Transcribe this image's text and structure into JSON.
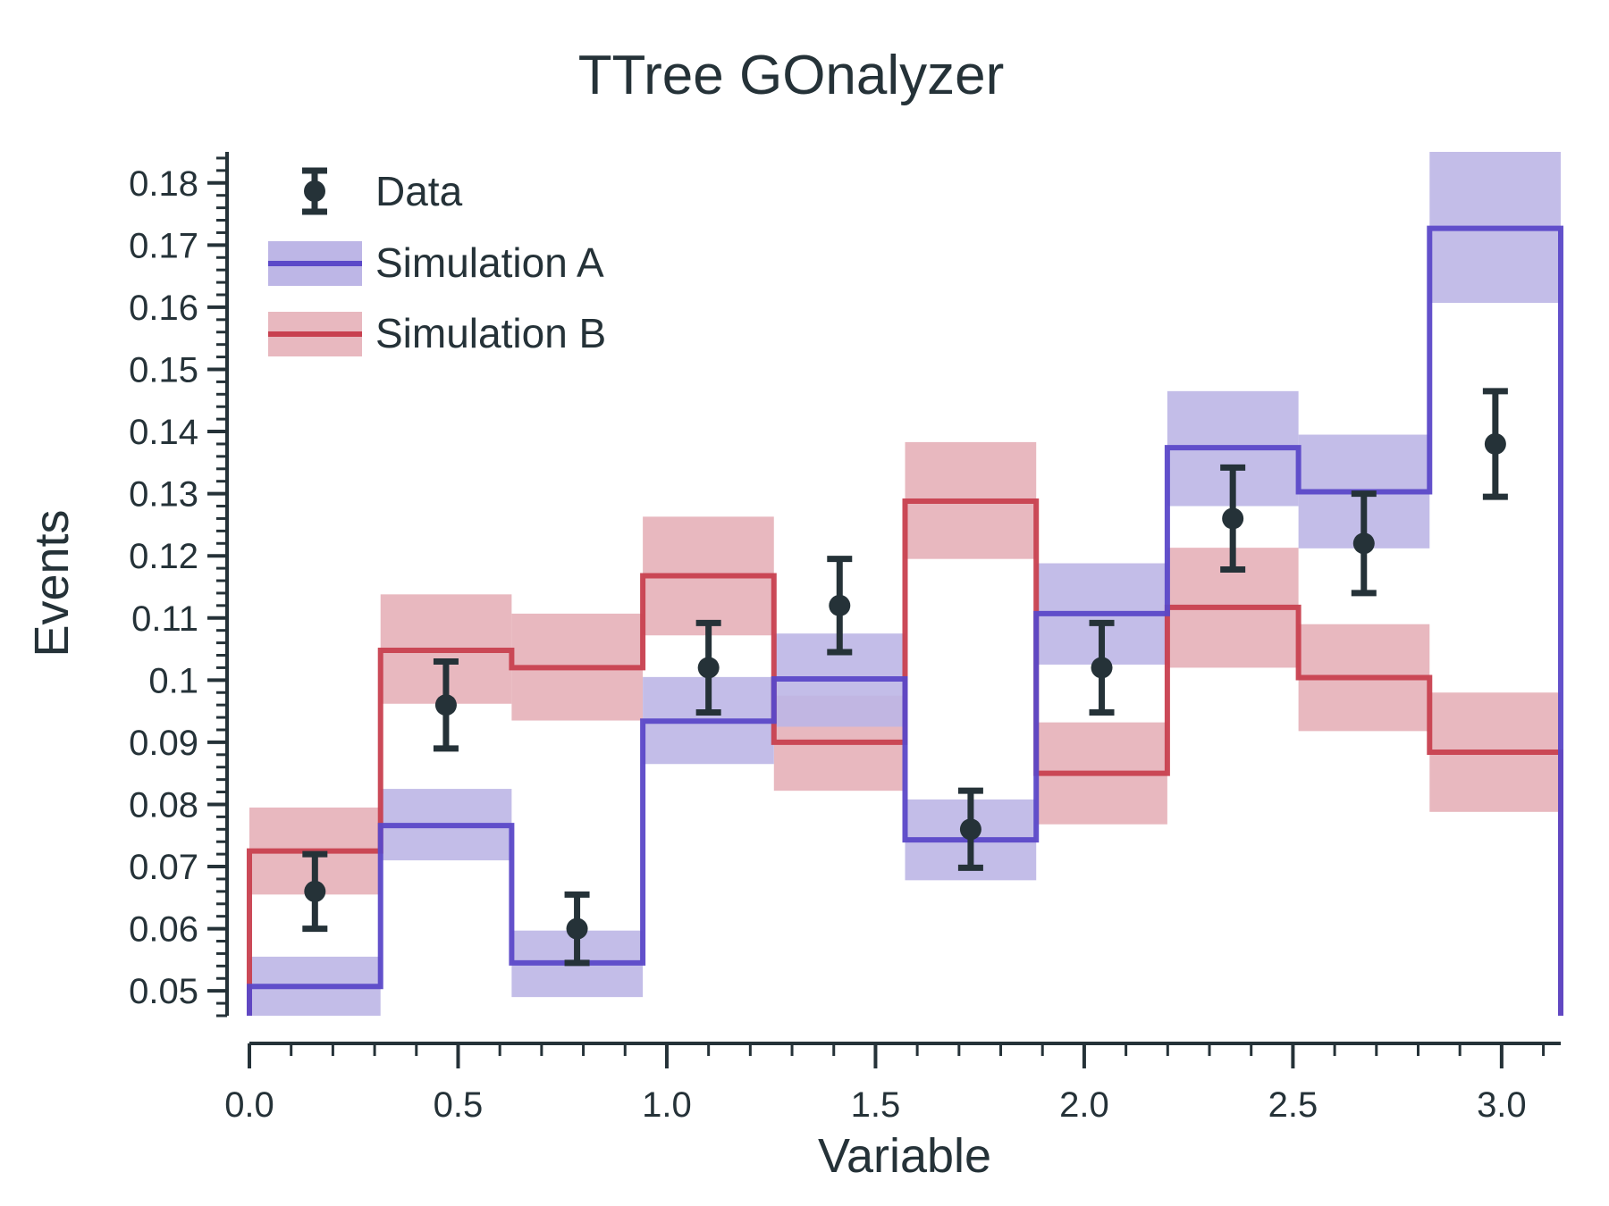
{
  "chart_data": {
    "type": "histogram",
    "title": "TTree GOnalyzer",
    "xlabel": "Variable",
    "ylabel": "Events",
    "xlim": [
      0,
      3.1416
    ],
    "ylim": [
      0.046,
      0.185
    ],
    "bin_edges": [
      0,
      0.3142,
      0.6283,
      0.9425,
      1.2566,
      1.5708,
      1.885,
      2.1991,
      2.5133,
      2.8274,
      3.1416
    ],
    "xticks": [
      "0.0",
      "0.5",
      "1.0",
      "1.5",
      "2.0",
      "2.5",
      "3.0"
    ],
    "xtick_values": [
      0,
      0.5,
      1.0,
      1.5,
      2.0,
      2.5,
      3.0
    ],
    "yticks": [
      "0.05",
      "0.06",
      "0.07",
      "0.08",
      "0.09",
      "0.1",
      "0.11",
      "0.12",
      "0.13",
      "0.14",
      "0.15",
      "0.16",
      "0.17",
      "0.18"
    ],
    "ytick_values": [
      0.05,
      0.06,
      0.07,
      0.08,
      0.09,
      0.1,
      0.11,
      0.12,
      0.13,
      0.14,
      0.15,
      0.16,
      0.17,
      0.18
    ],
    "legend_position": "top-left",
    "data": {
      "name": "Data",
      "color": "#253238",
      "x": [
        0.157,
        0.471,
        0.785,
        1.1,
        1.414,
        1.728,
        2.042,
        2.356,
        2.67,
        2.985
      ],
      "y": [
        0.066,
        0.096,
        0.06,
        0.102,
        0.112,
        0.076,
        0.102,
        0.126,
        0.122,
        0.138
      ],
      "yerr": [
        0.006,
        0.007,
        0.0055,
        0.0072,
        0.0075,
        0.0062,
        0.0072,
        0.0082,
        0.008,
        0.0085
      ]
    },
    "series": [
      {
        "name": "Simulation A",
        "color": "#5b48c8",
        "band_color": "#bdb6e6",
        "values": [
          0.0507,
          0.0766,
          0.0545,
          0.0934,
          0.1002,
          0.0743,
          0.1107,
          0.1374,
          0.1303,
          0.1727
        ],
        "band_low": [
          0.046,
          0.071,
          0.049,
          0.0865,
          0.0925,
          0.0678,
          0.1025,
          0.128,
          0.1212,
          0.1607
        ],
        "band_high": [
          0.0555,
          0.0825,
          0.0597,
          0.1005,
          0.1075,
          0.0808,
          0.1188,
          0.1465,
          0.1395,
          0.185
        ]
      },
      {
        "name": "Simulation B",
        "color": "#c8404f",
        "band_color": "#e8b8bf",
        "values": [
          0.0725,
          0.1048,
          0.102,
          0.1168,
          0.09,
          0.1288,
          0.085,
          0.1117,
          0.1004,
          0.0884
        ],
        "band_low": [
          0.0655,
          0.0962,
          0.0935,
          0.1072,
          0.0822,
          0.1195,
          0.0768,
          0.102,
          0.0918,
          0.0788
        ],
        "band_high": [
          0.0795,
          0.1138,
          0.1107,
          0.1263,
          0.0975,
          0.1383,
          0.0932,
          0.1213,
          0.109,
          0.098
        ]
      }
    ]
  }
}
